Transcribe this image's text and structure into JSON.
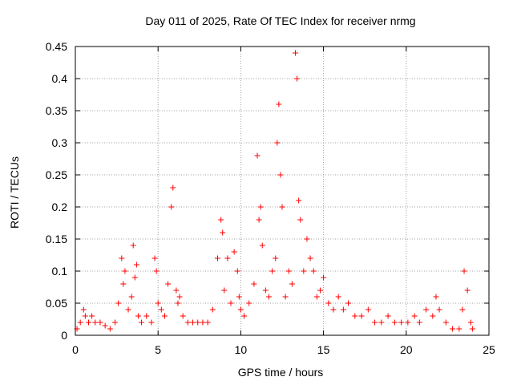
{
  "chart_data": {
    "type": "scatter",
    "title": "Day 011 of 2025, Rate Of TEC Index for receiver nrmg",
    "xlabel": "GPS time / hours",
    "ylabel": "ROTI / TECUs",
    "xlim": [
      0,
      25
    ],
    "ylim": [
      0,
      0.45
    ],
    "xticks": [
      "0",
      "5",
      "10",
      "15",
      "20",
      "25"
    ],
    "yticks": [
      "0",
      "0.05",
      "0.1",
      "0.15",
      "0.2",
      "0.25",
      "0.3",
      "0.35",
      "0.4",
      "0.45"
    ],
    "grid": true,
    "marker": "+",
    "color": "#ff0000",
    "series": [
      {
        "x": [
          0.1,
          0.3,
          0.5,
          0.6,
          0.8,
          1.0,
          1.2,
          1.5,
          1.8,
          2.1,
          2.4,
          2.6,
          2.8,
          2.9,
          3.0,
          3.2,
          3.4,
          3.5,
          3.6,
          3.7,
          3.8,
          4.0,
          4.3,
          4.6,
          4.8,
          4.9,
          5.0,
          5.2,
          5.4,
          5.6,
          5.8,
          5.9,
          6.1,
          6.2,
          6.3,
          6.5,
          6.8,
          7.1,
          7.4,
          7.7,
          8.0,
          8.3,
          8.6,
          8.8,
          8.9,
          9.0,
          9.2,
          9.4,
          9.6,
          9.8,
          9.9,
          10.0,
          10.2,
          10.5,
          10.8,
          11.0,
          11.1,
          11.2,
          11.3,
          11.5,
          11.7,
          11.9,
          12.1,
          12.2,
          12.3,
          12.4,
          12.5,
          12.7,
          12.9,
          13.1,
          13.3,
          13.4,
          13.5,
          13.6,
          13.8,
          14.0,
          14.2,
          14.4,
          14.6,
          14.8,
          15.0,
          15.3,
          15.6,
          15.9,
          16.2,
          16.5,
          16.9,
          17.3,
          17.7,
          18.1,
          18.5,
          18.9,
          19.3,
          19.7,
          20.1,
          20.5,
          20.8,
          21.2,
          21.6,
          21.8,
          22.0,
          22.4,
          22.8,
          23.2,
          23.4,
          23.5,
          23.7,
          23.9,
          24.0
        ],
        "y": [
          0.01,
          0.02,
          0.04,
          0.03,
          0.02,
          0.03,
          0.02,
          0.02,
          0.015,
          0.01,
          0.02,
          0.05,
          0.12,
          0.08,
          0.1,
          0.04,
          0.06,
          0.14,
          0.09,
          0.11,
          0.03,
          0.02,
          0.03,
          0.02,
          0.12,
          0.1,
          0.05,
          0.04,
          0.03,
          0.08,
          0.2,
          0.23,
          0.07,
          0.05,
          0.06,
          0.03,
          0.02,
          0.02,
          0.02,
          0.02,
          0.02,
          0.04,
          0.12,
          0.18,
          0.16,
          0.07,
          0.12,
          0.05,
          0.13,
          0.1,
          0.06,
          0.04,
          0.03,
          0.05,
          0.08,
          0.28,
          0.18,
          0.2,
          0.14,
          0.07,
          0.06,
          0.1,
          0.12,
          0.3,
          0.36,
          0.25,
          0.2,
          0.06,
          0.1,
          0.08,
          0.44,
          0.4,
          0.21,
          0.18,
          0.1,
          0.15,
          0.12,
          0.1,
          0.06,
          0.07,
          0.09,
          0.05,
          0.04,
          0.06,
          0.04,
          0.05,
          0.03,
          0.03,
          0.04,
          0.02,
          0.02,
          0.03,
          0.02,
          0.02,
          0.02,
          0.03,
          0.02,
          0.04,
          0.03,
          0.06,
          0.04,
          0.02,
          0.01,
          0.01,
          0.04,
          0.1,
          0.07,
          0.02,
          0.01
        ]
      }
    ]
  }
}
